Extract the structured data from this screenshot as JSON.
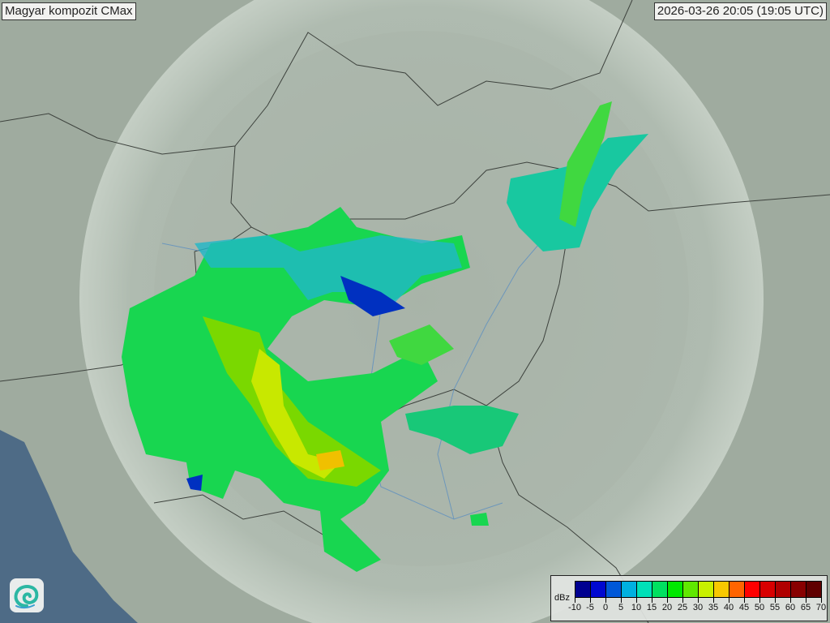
{
  "header": {
    "title": "Magyar kompozit  CMax",
    "timestamp": "2026-03-26 20:05 (19:05 UTC)"
  },
  "legend": {
    "unit": "dBz",
    "ticks": [
      "-10",
      "-5",
      "0",
      "5",
      "10",
      "15",
      "20",
      "25",
      "30",
      "35",
      "40",
      "45",
      "50",
      "55",
      "60",
      "65",
      "70"
    ],
    "colors": [
      "#000090",
      "#0008d0",
      "#0058d8",
      "#00b0e0",
      "#00e0b8",
      "#00e060",
      "#00e800",
      "#60e800",
      "#c8f000",
      "#f8c800",
      "#ff6400",
      "#ff0000",
      "#d80000",
      "#b00000",
      "#880000",
      "#600000"
    ]
  },
  "map": {
    "land_color": "#9fab9f",
    "coverage_color": "#c6d2c8",
    "sea_color": "#4e6b86"
  },
  "logo": {
    "icon": "omsz-swirl-logo"
  }
}
